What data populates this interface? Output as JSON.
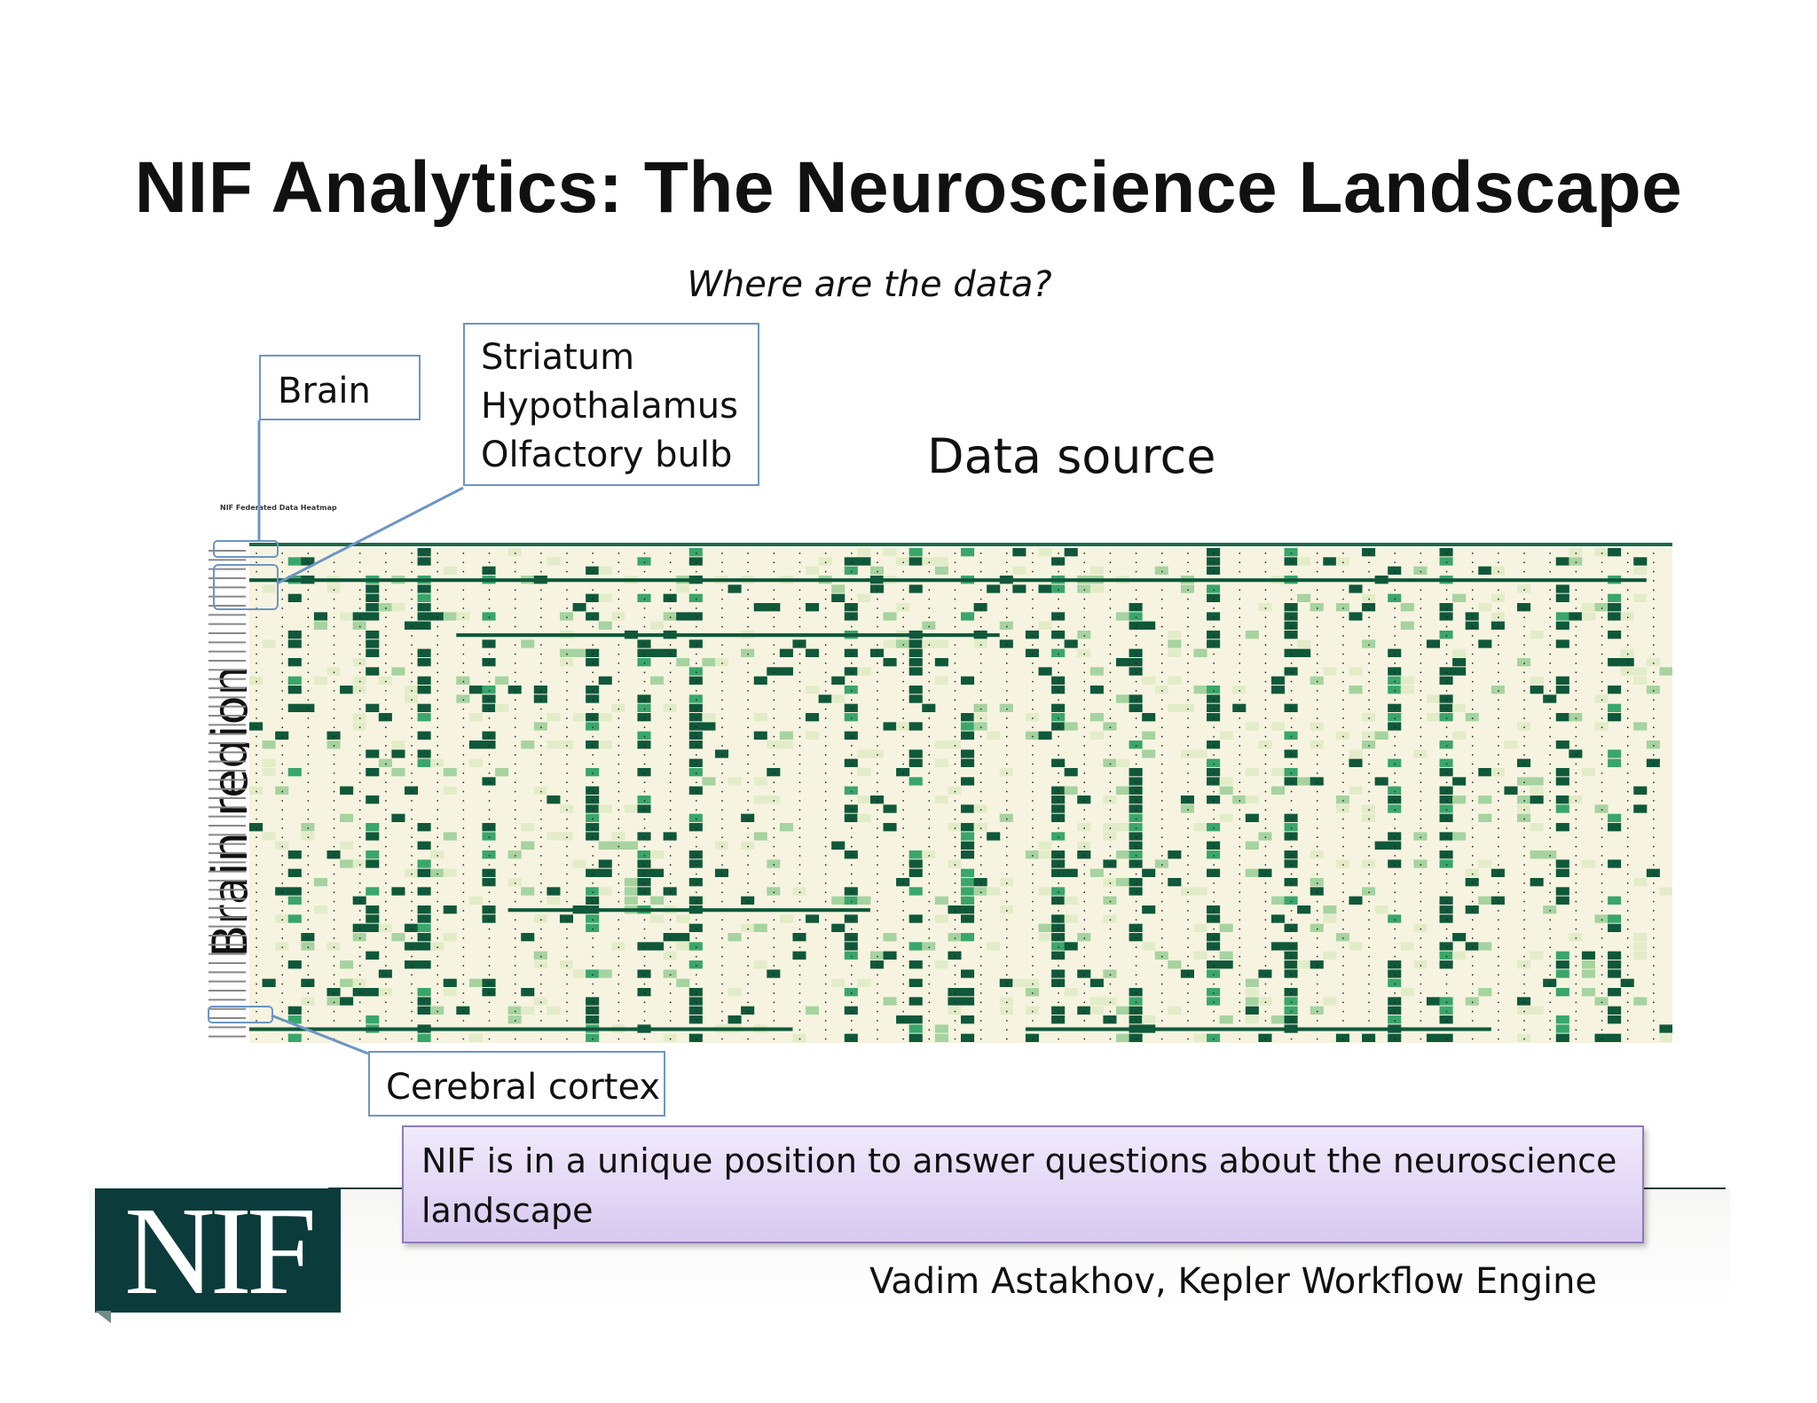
{
  "slide": {
    "title": "NIF Analytics:  The Neuroscience Landscape",
    "subtitle": "Where are the data?"
  },
  "callouts": {
    "brain": "Brain",
    "regions": [
      "Striatum",
      "Hypothalamus",
      "Olfactory bulb"
    ],
    "cortex": "Cerebral cortex"
  },
  "axes": {
    "x_label": "Data source",
    "y_label": "Brain region"
  },
  "heatmap": {
    "title": "NIF Federated Data Heatmap",
    "colors": {
      "background": "#f6f4e0",
      "low": "#e3ecc8",
      "mid": "#a6d3a0",
      "high": "#3aa66b",
      "max": "#10583a",
      "header_line": "#1a6b44"
    }
  },
  "message": "NIF is in a unique position to answer questions about the neuroscience landscape",
  "footer": {
    "logo_text": "NIF",
    "credit": "Vadim Astakhov, Kepler Workflow Engine"
  },
  "colors": {
    "callout_border": "#6d95c4",
    "logo_bg": "#0b3b3a",
    "message_border": "#8e7ab8"
  }
}
